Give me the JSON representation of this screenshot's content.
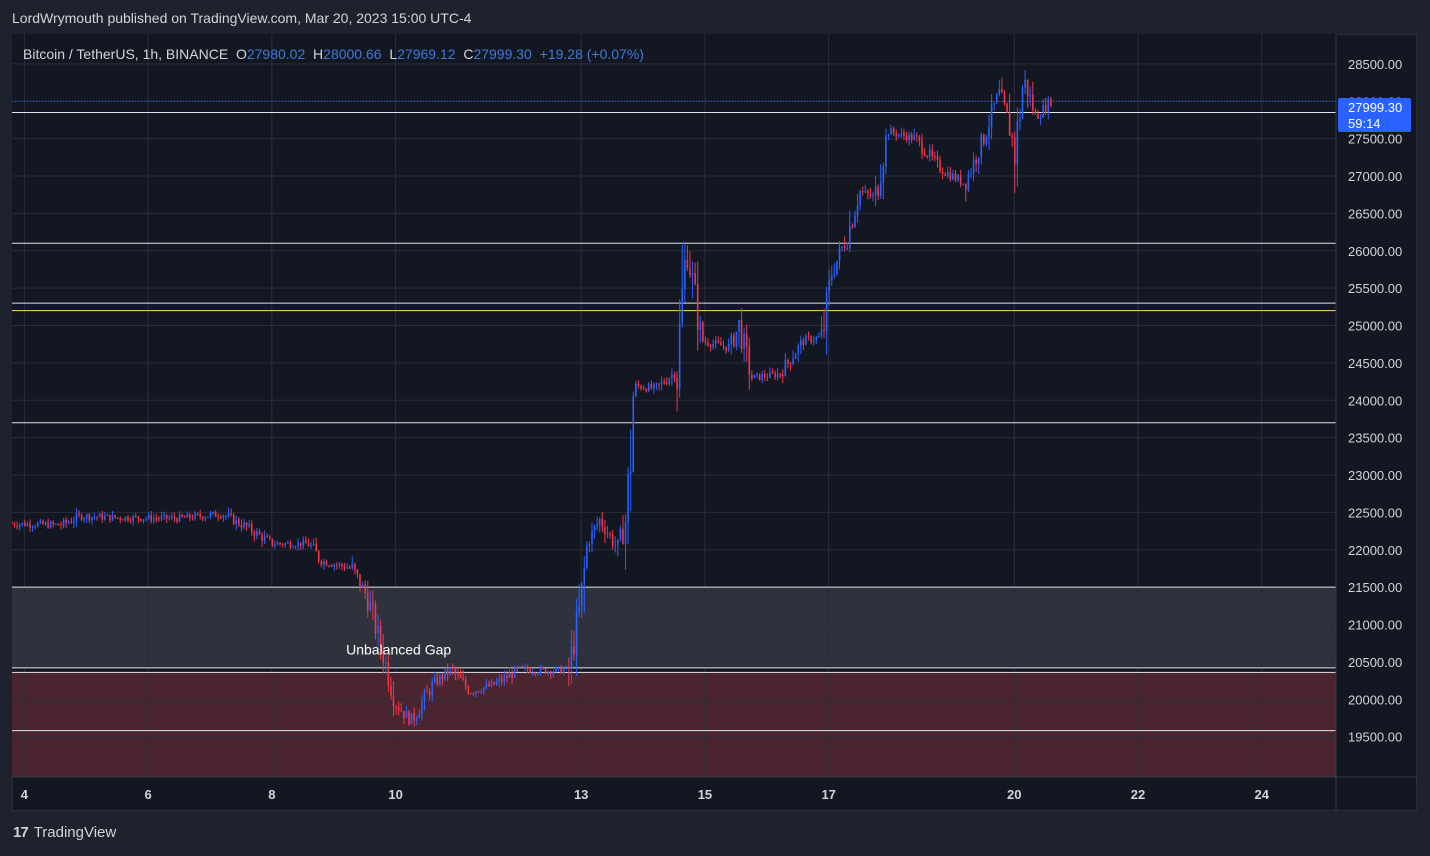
{
  "header": {
    "publisher_line": "LordWrymouth published on TradingView.com, Mar 20, 2023 15:00 UTC-4"
  },
  "legend": {
    "symbol": "Bitcoin / TetherUS, 1h, BINANCE",
    "open_label": "O",
    "open": "27980.02",
    "high_label": "H",
    "high": "28000.66",
    "low_label": "L",
    "low": "27969.12",
    "close_label": "C",
    "close": "27999.30",
    "change": "+19.28 (+0.07%)"
  },
  "last_price": {
    "value": "27999.30",
    "countdown": "59:14"
  },
  "footer": {
    "logo_text": "TradingView",
    "logo_mark": "17"
  },
  "colors": {
    "background": "#131722",
    "grid": "#2a2e39",
    "up": "#2962ff",
    "down": "#f23645",
    "text": "#d1d4dc",
    "zone_gray": "#2f323d",
    "zone_red": "#4a2530",
    "yellow_line": "#e7c458"
  },
  "chart_data": {
    "type": "candlestick",
    "timeframe": "1h",
    "y_ticks": [
      19500,
      20000,
      20500,
      21000,
      21500,
      22000,
      22500,
      23000,
      23500,
      24000,
      24500,
      25000,
      25500,
      26000,
      26500,
      27000,
      27500,
      28000,
      28500
    ],
    "y_tick_labels": [
      "19500.00",
      "20000.00",
      "20500.00",
      "21000.00",
      "21500.00",
      "22000.00",
      "22500.00",
      "23000.00",
      "23500.00",
      "24000.00",
      "24500.00",
      "25000.00",
      "25500.00",
      "26000.00",
      "26500.00",
      "27000.00",
      "27500.00",
      "28000.00",
      "28500.00"
    ],
    "ylim": [
      18960,
      28900
    ],
    "x_ticks": [
      {
        "label": "4",
        "day": 4
      },
      {
        "label": "6",
        "day": 6
      },
      {
        "label": "8",
        "day": 8
      },
      {
        "label": "10",
        "day": 10
      },
      {
        "label": "13",
        "day": 13
      },
      {
        "label": "15",
        "day": 15
      },
      {
        "label": "17",
        "day": 17
      },
      {
        "label": "20",
        "day": 20
      },
      {
        "label": "22",
        "day": 22
      },
      {
        "label": "24",
        "day": 24
      }
    ],
    "xlim_days": [
      3.8,
      25.2
    ],
    "horizontal_lines": [
      27850,
      26100,
      25300,
      23700,
      21500,
      20420,
      20360,
      19580
    ],
    "yellow_line": 25200,
    "dotted_price_line": 27999.3,
    "zones": [
      {
        "type": "gray",
        "from": 20420,
        "to": 21500
      },
      {
        "type": "red",
        "from": 18960,
        "to": 20360
      }
    ],
    "annotation": {
      "text": "Unbalanced Gap",
      "day": 9.2,
      "price": 20600
    },
    "price_path": [
      [
        3.8,
        22350
      ],
      [
        4.6,
        22330
      ],
      [
        4.9,
        22450
      ],
      [
        5.5,
        22430
      ],
      [
        6.5,
        22420
      ],
      [
        7.2,
        22480
      ],
      [
        7.6,
        22300
      ],
      [
        8.0,
        22080
      ],
      [
        8.6,
        22080
      ],
      [
        8.8,
        21850
      ],
      [
        9.3,
        21750
      ],
      [
        9.55,
        21350
      ],
      [
        9.8,
        20600
      ],
      [
        10.0,
        19950
      ],
      [
        10.25,
        19700
      ],
      [
        10.6,
        20200
      ],
      [
        10.9,
        20400
      ],
      [
        11.2,
        20100
      ],
      [
        11.6,
        20200
      ],
      [
        12.0,
        20400
      ],
      [
        12.5,
        20380
      ],
      [
        12.8,
        20400
      ],
      [
        13.0,
        21300
      ],
      [
        13.1,
        22100
      ],
      [
        13.3,
        22400
      ],
      [
        13.6,
        22000
      ],
      [
        13.75,
        22500
      ],
      [
        13.85,
        24200
      ],
      [
        14.2,
        24150
      ],
      [
        14.55,
        24400
      ],
      [
        14.7,
        26100
      ],
      [
        14.95,
        24800
      ],
      [
        15.4,
        24700
      ],
      [
        15.55,
        25000
      ],
      [
        15.75,
        24300
      ],
      [
        16.2,
        24350
      ],
      [
        16.6,
        24800
      ],
      [
        16.9,
        24850
      ],
      [
        17.05,
        25700
      ],
      [
        17.3,
        26200
      ],
      [
        17.5,
        26800
      ],
      [
        17.75,
        26700
      ],
      [
        17.95,
        27600
      ],
      [
        18.4,
        27500
      ],
      [
        18.8,
        27100
      ],
      [
        19.2,
        26900
      ],
      [
        19.5,
        27500
      ],
      [
        19.75,
        28100
      ],
      [
        19.95,
        27600
      ],
      [
        20.0,
        27250
      ],
      [
        20.15,
        28300
      ],
      [
        20.35,
        27800
      ],
      [
        20.6,
        27999
      ]
    ]
  }
}
